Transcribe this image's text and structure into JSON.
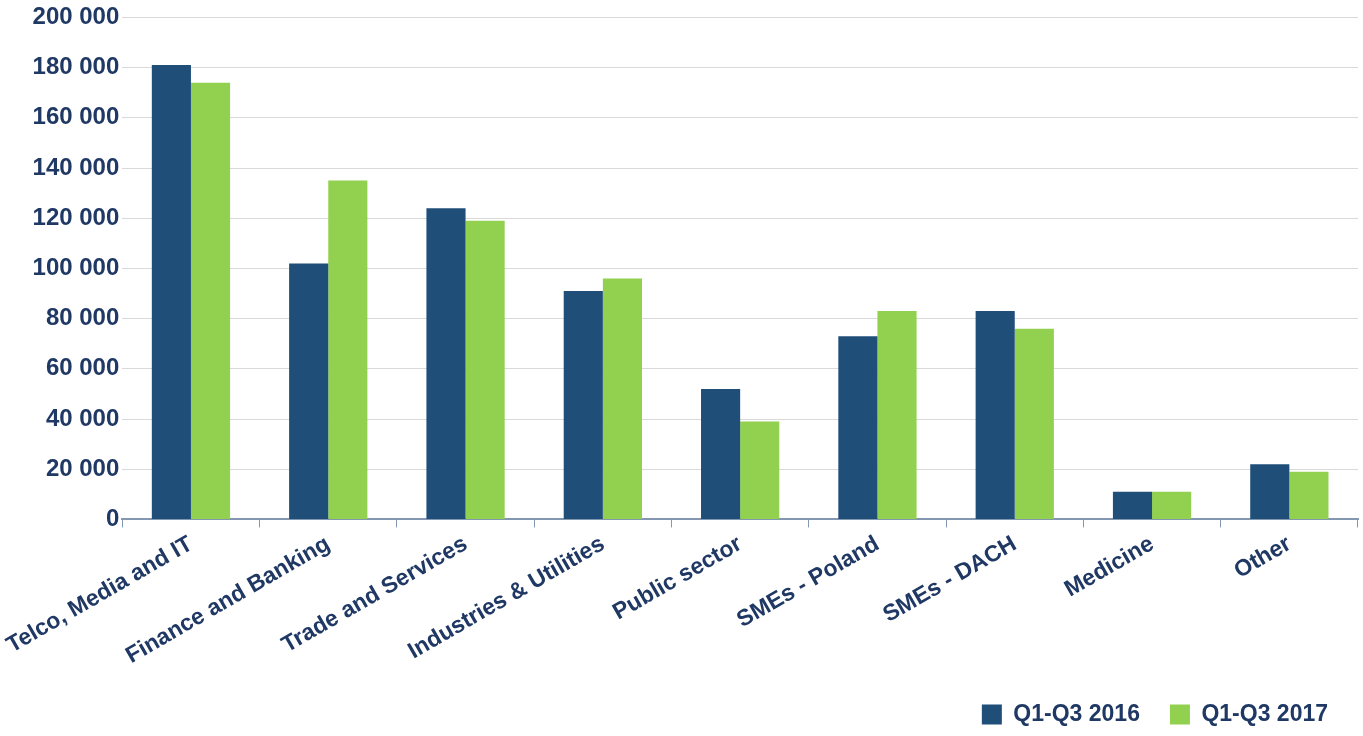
{
  "chart_data": {
    "type": "bar",
    "categories": [
      "Telco, Media and IT",
      "Finance and Banking",
      "Trade and Services",
      "Industries & Utilities",
      "Public sector",
      "SMEs - Poland",
      "SMEs - DACH",
      "Medicine",
      "Other"
    ],
    "series": [
      {
        "name": "Q1-Q3 2016",
        "color": "#1f4e79",
        "values": [
          181000,
          102000,
          124000,
          91000,
          52000,
          73000,
          83000,
          11000,
          22000
        ]
      },
      {
        "name": "Q1-Q3 2017",
        "color": "#92d050",
        "values": [
          174000,
          135000,
          119000,
          96000,
          39000,
          83000,
          76000,
          11000,
          19000
        ]
      }
    ],
    "ylim": [
      0,
      200000
    ],
    "yticks": [
      {
        "value": 0,
        "label": "0"
      },
      {
        "value": 20000,
        "label": "20 000"
      },
      {
        "value": 40000,
        "label": "40 000"
      },
      {
        "value": 60000,
        "label": "60 000"
      },
      {
        "value": 80000,
        "label": "80 000"
      },
      {
        "value": 100000,
        "label": "100 000"
      },
      {
        "value": 120000,
        "label": "120 000"
      },
      {
        "value": 140000,
        "label": "140 000"
      },
      {
        "value": 160000,
        "label": "160 000"
      },
      {
        "value": 180000,
        "label": "180 000"
      },
      {
        "value": 200000,
        "label": "200 000"
      }
    ],
    "grid": "y",
    "legend": "bottom right"
  }
}
